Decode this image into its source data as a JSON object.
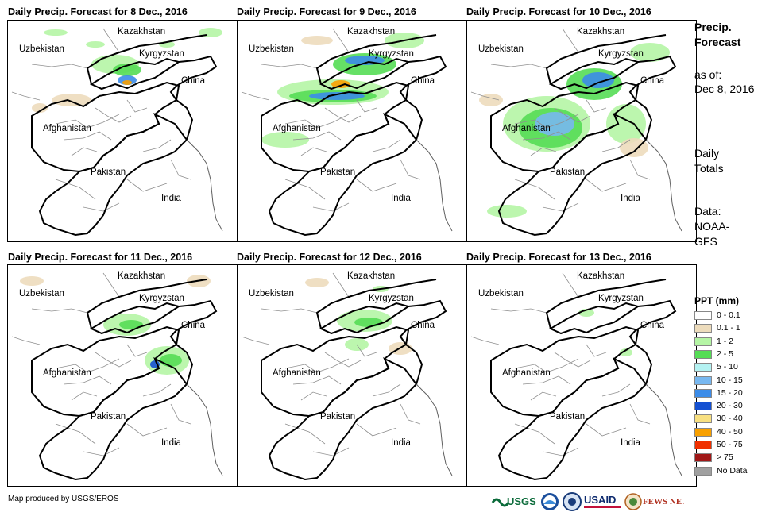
{
  "panels": [
    {
      "title": "Daily Precip. Forecast for 8 Dec., 2016"
    },
    {
      "title": "Daily Precip. Forecast for 9 Dec., 2016"
    },
    {
      "title": "Daily Precip. Forecast for 10 Dec., 2016"
    },
    {
      "title": "Daily Precip. Forecast for 11 Dec., 2016"
    },
    {
      "title": "Daily Precip. Forecast for 12 Dec., 2016"
    },
    {
      "title": "Daily Precip. Forecast for 13 Dec., 2016"
    }
  ],
  "map_labels": {
    "kazakhstan": "Kazakhstan",
    "uzbekistan": "Uzbekistan",
    "kyrgyzstan": "Kyrgyzstan",
    "china": "China",
    "afghanistan": "Afghanistan",
    "pakistan": "Pakistan",
    "india": "India"
  },
  "side": {
    "title_line1": "Precip.",
    "title_line2": "Forecast",
    "asof_line1": "as of:",
    "asof_line2": "Dec 8, 2016",
    "totals_line1": "Daily",
    "totals_line2": "Totals",
    "data_line1": "Data:",
    "data_line2": "NOAA-",
    "data_line3": "GFS"
  },
  "legend": {
    "title": "PPT (mm)",
    "items": [
      {
        "label": "0 - 0.1",
        "color": "#ffffff"
      },
      {
        "label": "0.1 - 1",
        "color": "#eddcbc"
      },
      {
        "label": "1 - 2",
        "color": "#b5f5a5"
      },
      {
        "label": "2 - 5",
        "color": "#55dd55"
      },
      {
        "label": "5 - 10",
        "color": "#b4f2f2"
      },
      {
        "label": "10 - 15",
        "color": "#78b8f0"
      },
      {
        "label": "15 - 20",
        "color": "#3c8ce8"
      },
      {
        "label": "20 - 30",
        "color": "#1450d2"
      },
      {
        "label": "30 - 40",
        "color": "#f8e080"
      },
      {
        "label": "40 - 50",
        "color": "#f8a000"
      },
      {
        "label": "50 - 75",
        "color": "#f03000"
      },
      {
        "label": "> 75",
        "color": "#a01818"
      },
      {
        "label": "No Data",
        "color": "#a0a0a0"
      }
    ]
  },
  "credit": "Map produced by USGS/EROS",
  "logos": {
    "usgs": "USGS",
    "usaid": "USAID",
    "fewsnet": "FEWS NET"
  }
}
